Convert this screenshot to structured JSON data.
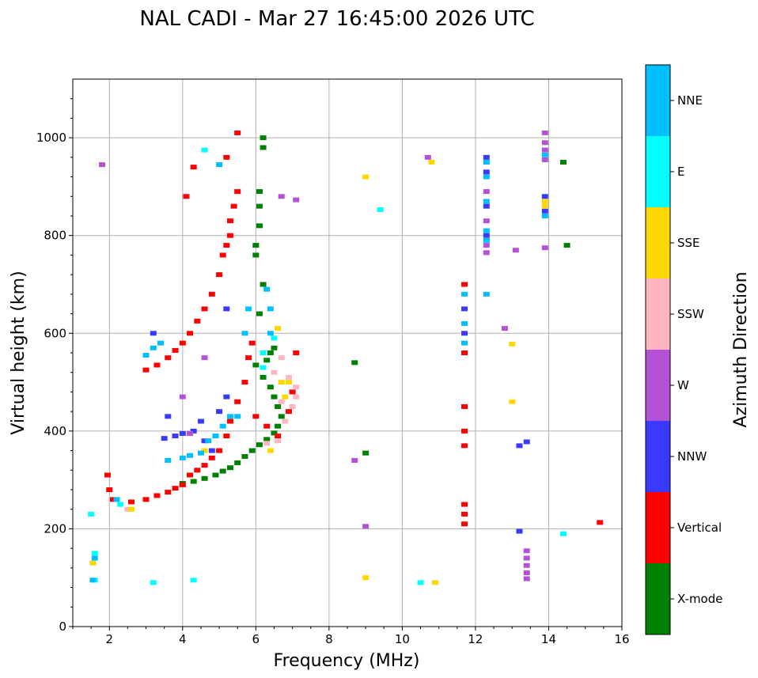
{
  "chart_data": {
    "type": "scatter",
    "title": "NAL CADI - Mar 27 16:45:00 2026 UTC",
    "xlabel": "Frequency (MHz)",
    "ylabel": "Virtual height (km)",
    "xlim": [
      1,
      16
    ],
    "ylim": [
      0,
      1120
    ],
    "xticks": [
      2,
      4,
      6,
      8,
      10,
      12,
      14,
      16
    ],
    "yticks": [
      0,
      200,
      400,
      600,
      800,
      1000
    ],
    "grid": true,
    "colorbar": {
      "label": "Azimuth Direction",
      "categories": [
        {
          "name": "X-mode",
          "color": "#008000"
        },
        {
          "name": "Vertical",
          "color": "#ff0000"
        },
        {
          "name": "NNW",
          "color": "#3a3aff"
        },
        {
          "name": "W",
          "color": "#b452d6"
        },
        {
          "name": "SSW",
          "color": "#ffb6c1"
        },
        {
          "name": "SSE",
          "color": "#ffd700"
        },
        {
          "name": "E",
          "color": "#00ffff"
        },
        {
          "name": "NNE",
          "color": "#00bfff"
        }
      ]
    },
    "series": [
      {
        "name": "X-mode",
        "points": [
          [
            4.0,
            293
          ],
          [
            4.3,
            297
          ],
          [
            4.6,
            303
          ],
          [
            4.9,
            310
          ],
          [
            5.1,
            318
          ],
          [
            5.3,
            325
          ],
          [
            5.5,
            335
          ],
          [
            5.7,
            348
          ],
          [
            5.9,
            360
          ],
          [
            6.1,
            372
          ],
          [
            6.3,
            383
          ],
          [
            6.5,
            396
          ],
          [
            6.6,
            410
          ],
          [
            6.7,
            430
          ],
          [
            6.6,
            450
          ],
          [
            6.5,
            470
          ],
          [
            6.4,
            490
          ],
          [
            6.2,
            510
          ],
          [
            6.0,
            535
          ],
          [
            6.3,
            545
          ],
          [
            6.4,
            560
          ],
          [
            6.5,
            570
          ],
          [
            6.1,
            640
          ],
          [
            6.2,
            700
          ],
          [
            6.0,
            760
          ],
          [
            6.0,
            780
          ],
          [
            6.1,
            820
          ],
          [
            6.1,
            860
          ],
          [
            6.1,
            890
          ],
          [
            6.2,
            980
          ],
          [
            6.2,
            1000
          ],
          [
            8.7,
            540
          ],
          [
            9.0,
            355
          ],
          [
            14.4,
            950
          ],
          [
            14.5,
            780
          ]
        ]
      },
      {
        "name": "Vertical",
        "points": [
          [
            1.95,
            310
          ],
          [
            2.0,
            280
          ],
          [
            2.1,
            260
          ],
          [
            2.6,
            255
          ],
          [
            3.0,
            260
          ],
          [
            3.3,
            268
          ],
          [
            3.6,
            275
          ],
          [
            3.8,
            283
          ],
          [
            4.0,
            290
          ],
          [
            4.2,
            310
          ],
          [
            4.4,
            320
          ],
          [
            4.6,
            330
          ],
          [
            4.8,
            345
          ],
          [
            5.0,
            360
          ],
          [
            5.2,
            390
          ],
          [
            5.3,
            420
          ],
          [
            5.5,
            460
          ],
          [
            5.7,
            500
          ],
          [
            5.8,
            550
          ],
          [
            6.0,
            430
          ],
          [
            6.3,
            410
          ],
          [
            6.6,
            390
          ],
          [
            6.9,
            440
          ],
          [
            7.0,
            480
          ],
          [
            7.1,
            560
          ],
          [
            5.9,
            580
          ],
          [
            3.0,
            525
          ],
          [
            3.3,
            535
          ],
          [
            3.6,
            550
          ],
          [
            3.8,
            565
          ],
          [
            4.0,
            580
          ],
          [
            4.2,
            600
          ],
          [
            4.4,
            625
          ],
          [
            4.6,
            650
          ],
          [
            4.8,
            680
          ],
          [
            5.0,
            720
          ],
          [
            5.1,
            760
          ],
          [
            5.2,
            780
          ],
          [
            5.3,
            800
          ],
          [
            5.3,
            830
          ],
          [
            5.4,
            860
          ],
          [
            5.5,
            890
          ],
          [
            4.1,
            880
          ],
          [
            4.3,
            940
          ],
          [
            5.2,
            960
          ],
          [
            5.5,
            1010
          ],
          [
            11.7,
            230
          ],
          [
            11.7,
            250
          ],
          [
            11.7,
            210
          ],
          [
            11.7,
            370
          ],
          [
            11.7,
            400
          ],
          [
            11.7,
            450
          ],
          [
            11.7,
            560
          ],
          [
            11.7,
            700
          ],
          [
            15.4,
            213
          ]
        ]
      },
      {
        "name": "NNW",
        "points": [
          [
            3.5,
            385
          ],
          [
            3.8,
            390
          ],
          [
            4.0,
            395
          ],
          [
            4.3,
            400
          ],
          [
            4.5,
            420
          ],
          [
            4.6,
            380
          ],
          [
            4.8,
            360
          ],
          [
            5.0,
            440
          ],
          [
            5.2,
            470
          ],
          [
            5.2,
            650
          ],
          [
            3.2,
            600
          ],
          [
            3.6,
            430
          ],
          [
            12.3,
            930
          ],
          [
            12.3,
            960
          ],
          [
            12.3,
            860
          ],
          [
            12.3,
            800
          ],
          [
            13.9,
            880
          ],
          [
            13.9,
            850
          ],
          [
            13.2,
            370
          ],
          [
            13.4,
            378
          ],
          [
            13.2,
            195
          ],
          [
            11.7,
            600
          ],
          [
            11.7,
            650
          ]
        ]
      },
      {
        "name": "W",
        "points": [
          [
            4.2,
            395
          ],
          [
            4.0,
            470
          ],
          [
            4.6,
            550
          ],
          [
            6.7,
            880
          ],
          [
            7.1,
            873
          ],
          [
            8.7,
            340
          ],
          [
            9.0,
            205
          ],
          [
            10.7,
            960
          ],
          [
            12.3,
            890
          ],
          [
            12.3,
            830
          ],
          [
            12.3,
            780
          ],
          [
            12.3,
            765
          ],
          [
            12.8,
            610
          ],
          [
            13.1,
            770
          ],
          [
            13.4,
            155
          ],
          [
            13.4,
            140
          ],
          [
            13.4,
            125
          ],
          [
            13.4,
            110
          ],
          [
            13.4,
            98
          ],
          [
            13.9,
            1010
          ],
          [
            13.9,
            990
          ],
          [
            13.9,
            975
          ],
          [
            13.9,
            955
          ],
          [
            13.9,
            775
          ],
          [
            1.8,
            945
          ]
        ]
      },
      {
        "name": "SSW",
        "points": [
          [
            2.5,
            240
          ],
          [
            6.3,
            375
          ],
          [
            6.6,
            380
          ],
          [
            6.8,
            420
          ],
          [
            7.0,
            450
          ],
          [
            7.1,
            470
          ],
          [
            7.1,
            490
          ],
          [
            6.9,
            510
          ],
          [
            6.7,
            460
          ],
          [
            6.5,
            520
          ],
          [
            6.7,
            550
          ]
        ]
      },
      {
        "name": "SSE",
        "points": [
          [
            2.6,
            240
          ],
          [
            4.6,
            360
          ],
          [
            6.4,
            360
          ],
          [
            6.8,
            470
          ],
          [
            6.9,
            500
          ],
          [
            6.6,
            610
          ],
          [
            6.7,
            500
          ],
          [
            9.0,
            920
          ],
          [
            9.0,
            100
          ],
          [
            10.8,
            950
          ],
          [
            10.9,
            90
          ],
          [
            13.0,
            460
          ],
          [
            13.0,
            578
          ],
          [
            13.9,
            870
          ],
          [
            13.9,
            860
          ],
          [
            1.55,
            130
          ]
        ]
      },
      {
        "name": "E",
        "points": [
          [
            1.6,
            150
          ],
          [
            1.6,
            95
          ],
          [
            2.3,
            250
          ],
          [
            3.2,
            90
          ],
          [
            4.6,
            975
          ],
          [
            4.3,
            95
          ],
          [
            6.2,
            530
          ],
          [
            6.2,
            560
          ],
          [
            6.5,
            590
          ],
          [
            9.4,
            853
          ],
          [
            10.5,
            90
          ],
          [
            14.4,
            190
          ],
          [
            1.5,
            230
          ]
        ]
      },
      {
        "name": "NNE",
        "points": [
          [
            1.55,
            95
          ],
          [
            1.6,
            140
          ],
          [
            2.2,
            260
          ],
          [
            3.0,
            555
          ],
          [
            3.2,
            570
          ],
          [
            3.4,
            580
          ],
          [
            3.6,
            340
          ],
          [
            4.0,
            345
          ],
          [
            4.2,
            350
          ],
          [
            4.5,
            355
          ],
          [
            4.7,
            380
          ],
          [
            4.9,
            390
          ],
          [
            5.1,
            410
          ],
          [
            5.3,
            430
          ],
          [
            5.5,
            430
          ],
          [
            5.7,
            600
          ],
          [
            5.8,
            650
          ],
          [
            6.3,
            690
          ],
          [
            6.4,
            650
          ],
          [
            6.4,
            600
          ],
          [
            12.3,
            680
          ],
          [
            11.7,
            680
          ],
          [
            11.7,
            620
          ],
          [
            11.7,
            580
          ],
          [
            12.3,
            950
          ],
          [
            12.3,
            920
          ],
          [
            12.3,
            870
          ],
          [
            12.3,
            810
          ],
          [
            12.3,
            790
          ],
          [
            13.9,
            840
          ],
          [
            13.9,
            965
          ],
          [
            5.0,
            945
          ]
        ]
      }
    ]
  }
}
